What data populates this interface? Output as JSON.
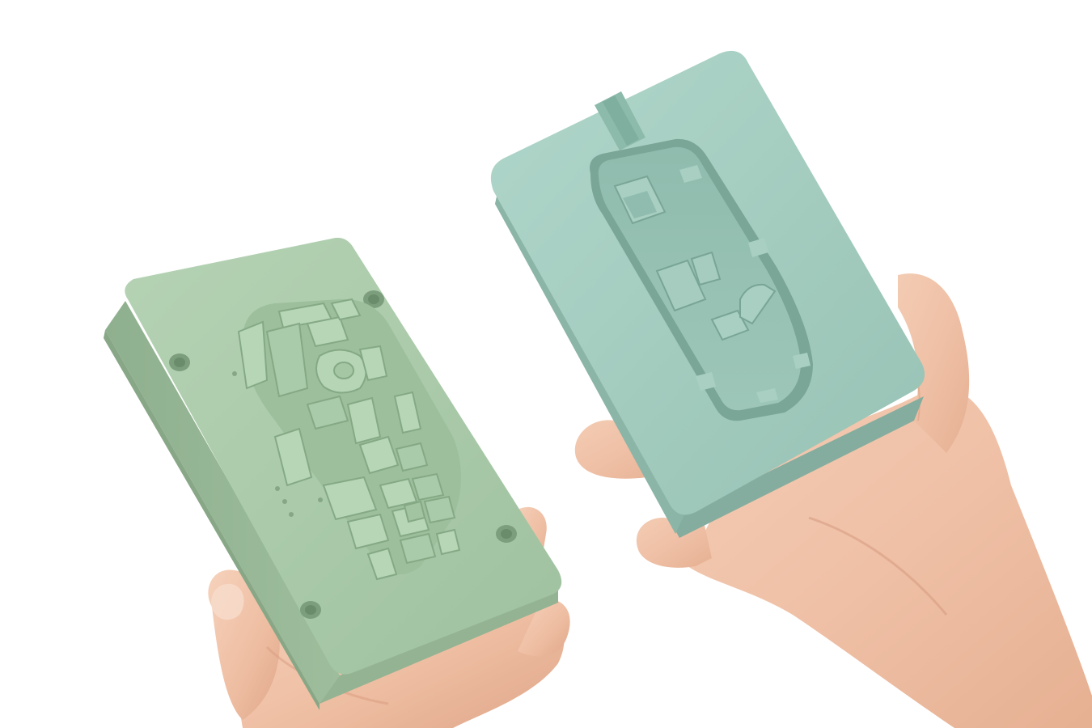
{
  "scene": {
    "background_color": "#ffffff",
    "objects": [
      {
        "name": "left-mold-half-core",
        "color": "#a9c9a8"
      },
      {
        "name": "right-mold-half-cavity",
        "color": "#a3cbbe"
      },
      {
        "name": "left-hand",
        "color": "#f0c2a8"
      },
      {
        "name": "right-hand",
        "color": "#f0c2a8"
      }
    ]
  }
}
